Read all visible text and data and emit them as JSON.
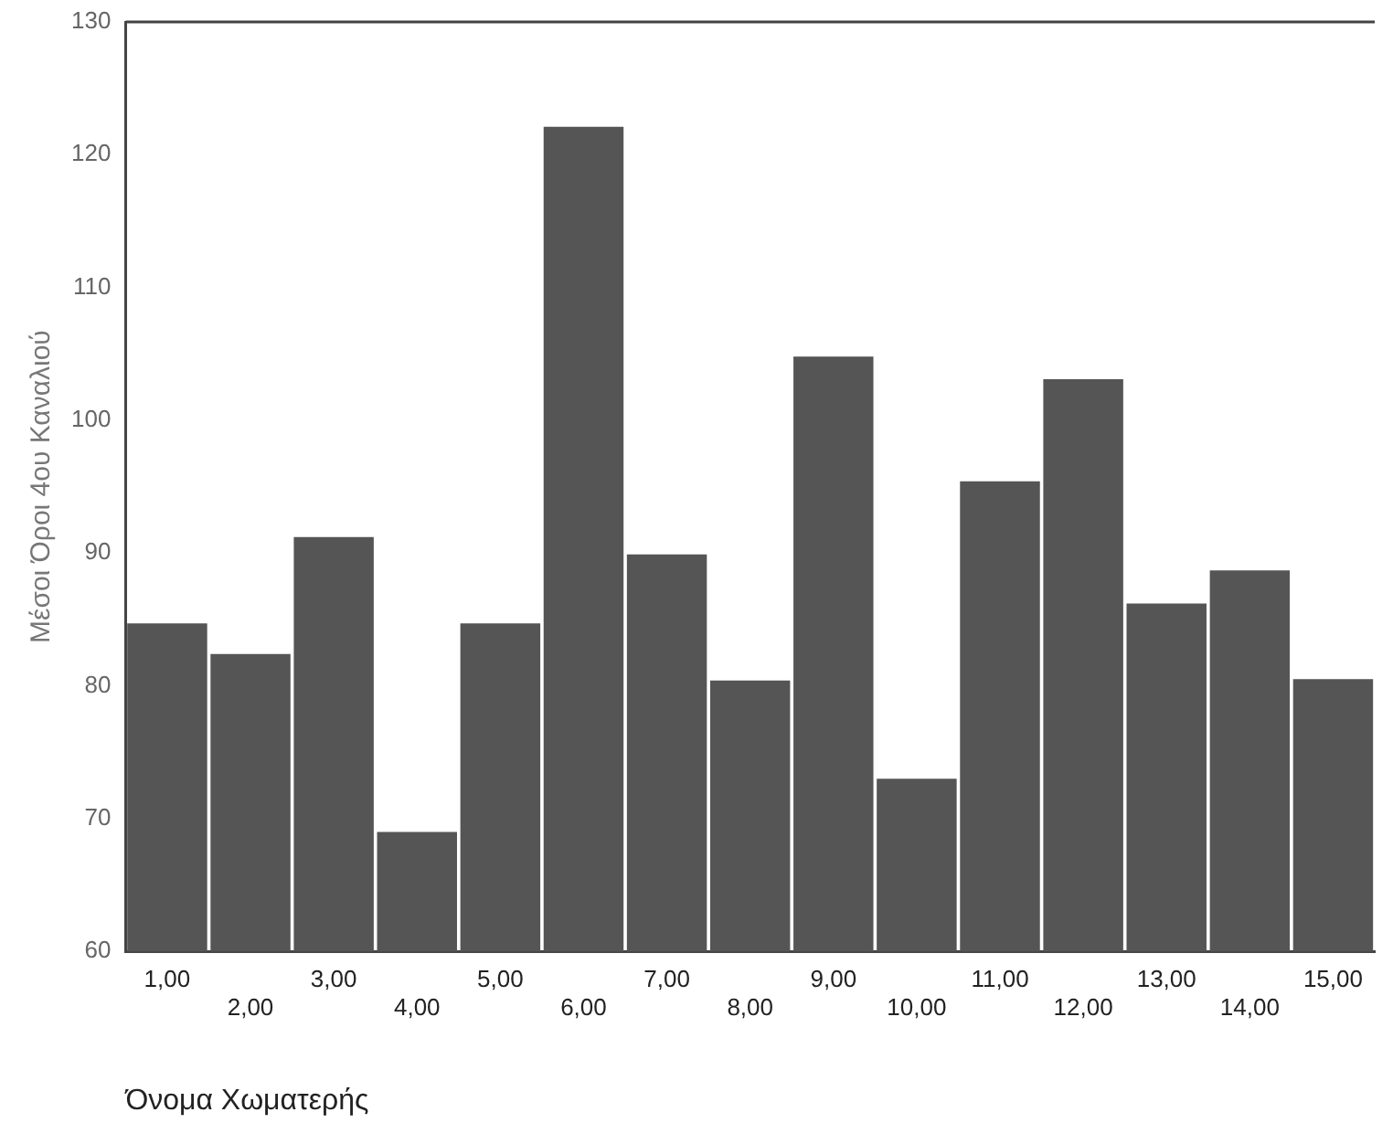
{
  "chart_data": {
    "type": "bar",
    "xlabel": "Όνομα Χωματερής",
    "ylabel": "Μέσοι Όροι 4ου Καναλιού",
    "categories": [
      "1,00",
      "2,00",
      "3,00",
      "4,00",
      "5,00",
      "6,00",
      "7,00",
      "8,00",
      "9,00",
      "10,00",
      "11,00",
      "12,00",
      "13,00",
      "14,00",
      "15,00"
    ],
    "values": [
      84.7,
      82.4,
      91.2,
      69.0,
      84.7,
      122.1,
      89.9,
      80.4,
      104.8,
      73.0,
      95.4,
      103.1,
      86.2,
      88.7,
      80.5
    ],
    "color": "#555555",
    "ylim": [
      60,
      130
    ],
    "yticks": [
      60,
      70,
      80,
      90,
      100,
      110,
      120,
      130
    ],
    "grid": false,
    "legend": false
  }
}
